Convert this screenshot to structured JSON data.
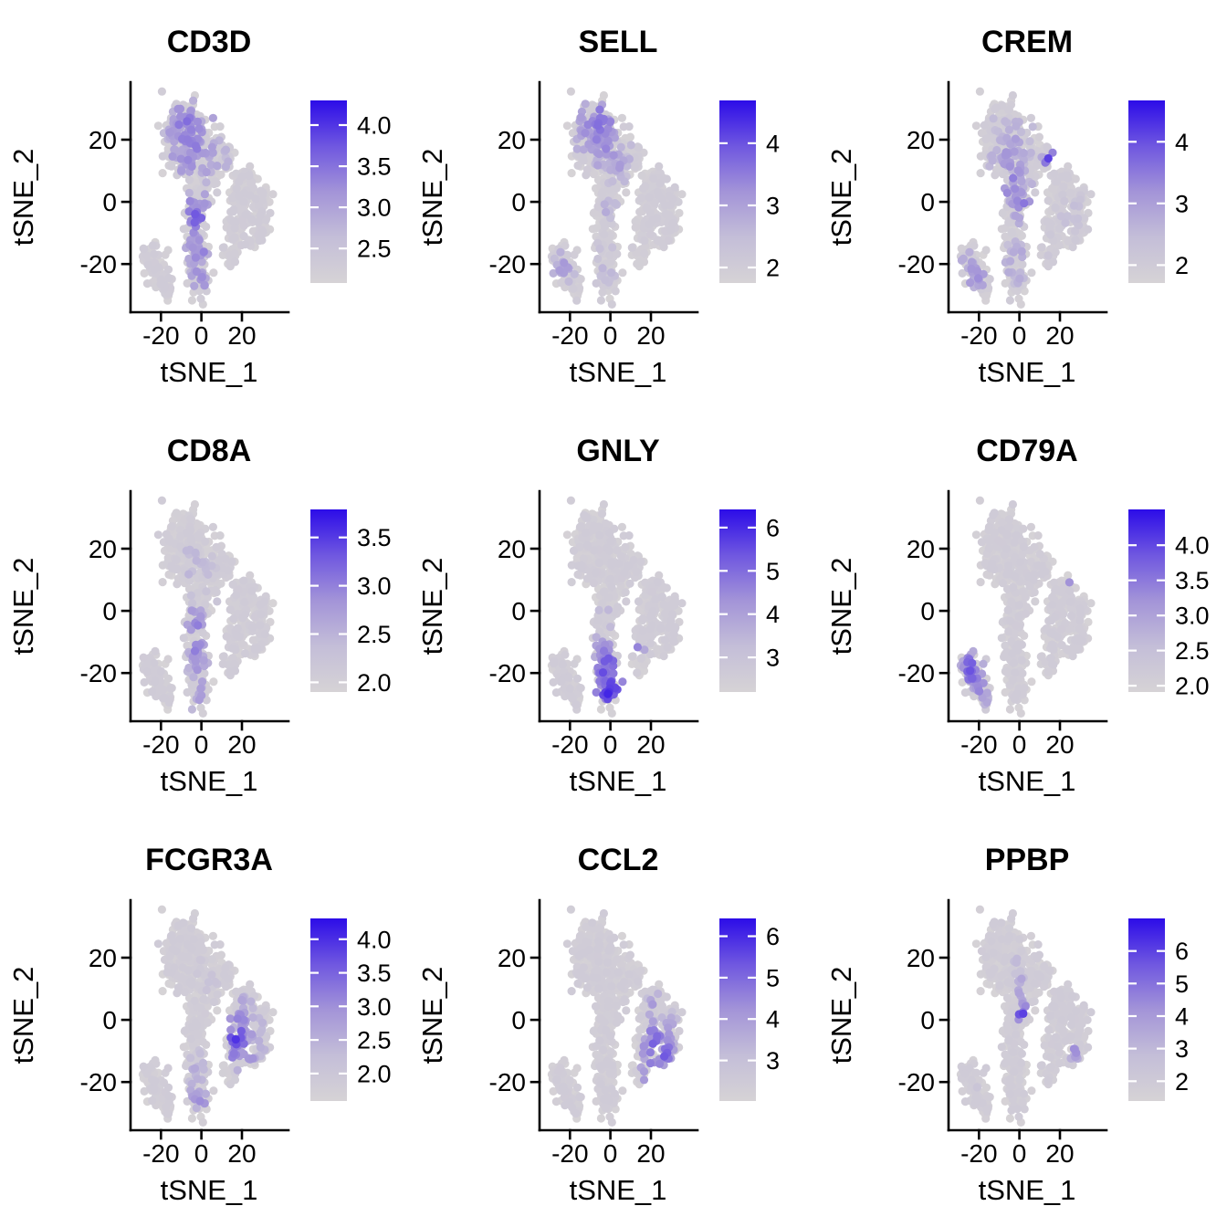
{
  "figure": {
    "background": "#ffffff",
    "kind": "tSNE feature plot grid"
  },
  "chart_data": {
    "type": "scatter",
    "layout": {
      "rows": 3,
      "cols": 3
    },
    "shared": {
      "xlabel": "tSNE_1",
      "ylabel": "tSNE_2",
      "xlim": [
        -35,
        43
      ],
      "ylim": [
        -35.5,
        38.5
      ],
      "xtick_values": [
        -20,
        0,
        20
      ],
      "xtick_labels": [
        "-20",
        "0",
        "20"
      ],
      "ytick_values": [
        20,
        0,
        -20
      ],
      "ytick_labels": [
        "20",
        "0",
        "-20"
      ],
      "grid": "off",
      "legend_position": "right",
      "colors": {
        "low": "#d6d3d6",
        "high": "#2c0ce8",
        "gradient_stops": [
          [
            0,
            "#d6d3d6"
          ],
          [
            0.25,
            "#c4bed8"
          ],
          [
            0.5,
            "#a394d8"
          ],
          [
            0.75,
            "#6f57e0"
          ],
          [
            1,
            "#2c0ce8"
          ]
        ]
      },
      "embedding_clusters": [
        [
          -8,
          26,
          4.5,
          3.2,
          70
        ],
        [
          -3,
          19,
          5.5,
          3.5,
          85
        ],
        [
          -9,
          13,
          3.5,
          2.8,
          45
        ],
        [
          2,
          10,
          4.0,
          3.5,
          60
        ],
        [
          9,
          14,
          2.8,
          2.2,
          30
        ],
        [
          13,
          14,
          1.8,
          1.5,
          10
        ],
        [
          -14,
          21,
          2.5,
          2.8,
          24
        ],
        [
          -16,
          15,
          2.0,
          2.0,
          12
        ],
        [
          -2,
          1,
          3.2,
          3.5,
          45
        ],
        [
          -4,
          -6,
          2.2,
          2.5,
          25
        ],
        [
          -2,
          -13,
          2.8,
          2.5,
          32
        ],
        [
          -1,
          -19,
          2.8,
          3.0,
          38
        ],
        [
          0,
          -26,
          2.8,
          2.5,
          34
        ],
        [
          -25,
          -17,
          2.8,
          2.2,
          32
        ],
        [
          -22,
          -22,
          2.8,
          2.5,
          34
        ],
        [
          -18,
          -27,
          2.5,
          2.2,
          26
        ],
        [
          16,
          -11,
          2.5,
          3.0,
          32
        ],
        [
          19,
          -4,
          3.0,
          3.5,
          50
        ],
        [
          21,
          3,
          3.0,
          2.5,
          38
        ],
        [
          23,
          8,
          2.2,
          1.8,
          18
        ],
        [
          14,
          -17,
          1.8,
          2.0,
          12
        ],
        [
          28,
          -2,
          2.5,
          3.5,
          40
        ],
        [
          30,
          -8,
          2.2,
          2.5,
          28
        ],
        [
          26,
          -13,
          2.0,
          2.0,
          16
        ],
        [
          31,
          2,
          2.0,
          2.5,
          20
        ]
      ]
    },
    "panels": [
      {
        "title": "CD3D",
        "scale_domain": [
          2.08,
          4.3
        ],
        "legend_ticks": [
          {
            "value": 4.0,
            "label": "4.0"
          },
          {
            "value": 3.5,
            "label": "3.5"
          },
          {
            "value": 3.0,
            "label": "3.0"
          },
          {
            "value": 2.5,
            "label": "2.5"
          }
        ],
        "hotspots": [
          {
            "x": -5,
            "y": 19,
            "r": 15,
            "v": 0.55,
            "f": 0.5
          },
          {
            "x": -8,
            "y": 26,
            "r": 8,
            "v": 0.6,
            "f": 0.45
          },
          {
            "x": -3,
            "y": -5,
            "r": 6,
            "v": 0.75,
            "f": 0.55
          },
          {
            "x": -1,
            "y": -16,
            "r": 6,
            "v": 0.6,
            "f": 0.5
          },
          {
            "x": 0,
            "y": -24,
            "r": 6,
            "v": 0.55,
            "f": 0.45
          }
        ]
      },
      {
        "title": "SELL",
        "scale_domain": [
          1.75,
          4.69
        ],
        "legend_ticks": [
          {
            "value": 4,
            "label": "4"
          },
          {
            "value": 3,
            "label": "3"
          },
          {
            "value": 2,
            "label": "2"
          }
        ],
        "hotspots": [
          {
            "x": -6,
            "y": 25,
            "r": 10,
            "v": 0.62,
            "f": 0.55
          },
          {
            "x": -2,
            "y": 17,
            "r": 9,
            "v": 0.5,
            "f": 0.45
          },
          {
            "x": 4,
            "y": 12,
            "r": 6,
            "v": 0.45,
            "f": 0.35
          },
          {
            "x": -22,
            "y": -21,
            "r": 7,
            "v": 0.45,
            "f": 0.35
          },
          {
            "x": -2,
            "y": -2,
            "r": 5,
            "v": 0.35,
            "f": 0.25
          },
          {
            "x": -1,
            "y": -20,
            "r": 7,
            "v": 0.3,
            "f": 0.2
          }
        ]
      },
      {
        "title": "CREM",
        "scale_domain": [
          1.71,
          4.67
        ],
        "legend_ticks": [
          {
            "value": 4,
            "label": "4"
          },
          {
            "value": 3,
            "label": "3"
          },
          {
            "value": 2,
            "label": "2"
          }
        ],
        "hotspots": [
          {
            "x": -4,
            "y": 6,
            "r": 9,
            "v": 0.55,
            "f": 0.5
          },
          {
            "x": -5,
            "y": 16,
            "r": 11,
            "v": 0.45,
            "f": 0.4
          },
          {
            "x": 2,
            "y": -1,
            "r": 6,
            "v": 0.6,
            "f": 0.5
          },
          {
            "x": 15,
            "y": 14,
            "r": 2.5,
            "v": 0.85,
            "f": 0.95
          },
          {
            "x": -22,
            "y": -23,
            "r": 7,
            "v": 0.5,
            "f": 0.35
          },
          {
            "x": -1,
            "y": -20,
            "r": 9,
            "v": 0.4,
            "f": 0.3
          },
          {
            "x": 26,
            "y": -4,
            "r": 8,
            "v": 0.25,
            "f": 0.2
          }
        ]
      },
      {
        "title": "CD8A",
        "scale_domain": [
          1.9,
          3.79
        ],
        "legend_ticks": [
          {
            "value": 3.5,
            "label": "3.5"
          },
          {
            "value": 3.0,
            "label": "3.0"
          },
          {
            "value": 2.5,
            "label": "2.5"
          },
          {
            "value": 2.0,
            "label": "2.0"
          }
        ],
        "hotspots": [
          {
            "x": -3,
            "y": -4,
            "r": 5,
            "v": 0.6,
            "f": 0.5
          },
          {
            "x": -2,
            "y": -13,
            "r": 5,
            "v": 0.55,
            "f": 0.5
          },
          {
            "x": -1,
            "y": -20,
            "r": 5,
            "v": 0.5,
            "f": 0.45
          },
          {
            "x": 0,
            "y": -26,
            "r": 5,
            "v": 0.5,
            "f": 0.4
          },
          {
            "x": -5,
            "y": 14,
            "r": 12,
            "v": 0.3,
            "f": 0.15
          }
        ]
      },
      {
        "title": "GNLY",
        "scale_domain": [
          2.2,
          6.42
        ],
        "legend_ticks": [
          {
            "value": 6,
            "label": "6"
          },
          {
            "value": 5,
            "label": "5"
          },
          {
            "value": 4,
            "label": "4"
          },
          {
            "value": 3,
            "label": "3"
          }
        ],
        "hotspots": [
          {
            "x": -1,
            "y": -19,
            "r": 6,
            "v": 0.8,
            "f": 0.8
          },
          {
            "x": 0,
            "y": -26,
            "r": 6,
            "v": 0.85,
            "f": 0.85
          },
          {
            "x": -3,
            "y": -12,
            "r": 4,
            "v": 0.6,
            "f": 0.6
          },
          {
            "x": 14,
            "y": -13,
            "r": 2,
            "v": 0.7,
            "f": 0.9
          },
          {
            "x": -4,
            "y": -3,
            "r": 3,
            "v": 0.5,
            "f": 0.4
          }
        ]
      },
      {
        "title": "CD79A",
        "scale_domain": [
          1.91,
          4.51
        ],
        "legend_ticks": [
          {
            "value": 4.0,
            "label": "4.0"
          },
          {
            "value": 3.5,
            "label": "3.5"
          },
          {
            "value": 3.0,
            "label": "3.0"
          },
          {
            "value": 2.5,
            "label": "2.5"
          },
          {
            "value": 2.0,
            "label": "2.0"
          }
        ],
        "hotspots": [
          {
            "x": -24,
            "y": -19,
            "r": 6,
            "v": 0.7,
            "f": 0.8
          },
          {
            "x": -20,
            "y": -24,
            "r": 5,
            "v": 0.55,
            "f": 0.6
          },
          {
            "x": -17,
            "y": -28,
            "r": 4,
            "v": 0.4,
            "f": 0.4
          },
          {
            "x": 25,
            "y": 10,
            "r": 1.5,
            "v": 0.6,
            "f": 1.0
          },
          {
            "x": -21,
            "y": 19,
            "r": 1.5,
            "v": 0.5,
            "f": 1.0
          }
        ]
      },
      {
        "title": "FCGR3A",
        "scale_domain": [
          1.59,
          4.31
        ],
        "legend_ticks": [
          {
            "value": 4.0,
            "label": "4.0"
          },
          {
            "value": 3.5,
            "label": "3.5"
          },
          {
            "value": 3.0,
            "label": "3.0"
          },
          {
            "value": 2.5,
            "label": "2.5"
          },
          {
            "value": 2.0,
            "label": "2.0"
          }
        ],
        "hotspots": [
          {
            "x": 17,
            "y": -6,
            "r": 6,
            "v": 0.8,
            "f": 0.7
          },
          {
            "x": 20,
            "y": 0,
            "r": 7,
            "v": 0.55,
            "f": 0.5
          },
          {
            "x": 22,
            "y": -12,
            "r": 6,
            "v": 0.55,
            "f": 0.5
          },
          {
            "x": 28,
            "y": -5,
            "r": 6,
            "v": 0.4,
            "f": 0.35
          },
          {
            "x": 0,
            "y": -25,
            "r": 6,
            "v": 0.5,
            "f": 0.5
          },
          {
            "x": -1,
            "y": -17,
            "r": 5,
            "v": 0.4,
            "f": 0.35
          },
          {
            "x": 5,
            "y": 13,
            "r": 8,
            "v": 0.2,
            "f": 0.1
          }
        ]
      },
      {
        "title": "CCL2",
        "scale_domain": [
          2.02,
          6.43
        ],
        "legend_ticks": [
          {
            "value": 6,
            "label": "6"
          },
          {
            "value": 5,
            "label": "5"
          },
          {
            "value": 4,
            "label": "4"
          },
          {
            "value": 3,
            "label": "3"
          }
        ],
        "hotspots": [
          {
            "x": 24,
            "y": -10,
            "r": 7,
            "v": 0.75,
            "f": 0.6
          },
          {
            "x": 27,
            "y": -15,
            "r": 5,
            "v": 0.7,
            "f": 0.55
          },
          {
            "x": 21,
            "y": -4,
            "r": 5,
            "v": 0.55,
            "f": 0.4
          },
          {
            "x": 30,
            "y": -3,
            "r": 5,
            "v": 0.5,
            "f": 0.4
          },
          {
            "x": 22,
            "y": 4,
            "r": 5,
            "v": 0.45,
            "f": 0.3
          },
          {
            "x": 16,
            "y": -18,
            "r": 3,
            "v": 0.5,
            "f": 0.4
          }
        ]
      },
      {
        "title": "PPBP",
        "scale_domain": [
          1.39,
          7.0
        ],
        "legend_ticks": [
          {
            "value": 6,
            "label": "6"
          },
          {
            "value": 5,
            "label": "5"
          },
          {
            "value": 4,
            "label": "4"
          },
          {
            "value": 3,
            "label": "3"
          },
          {
            "value": 2,
            "label": "2"
          }
        ],
        "hotspots": [
          {
            "x": 1,
            "y": 2,
            "r": 2.2,
            "v": 0.85,
            "f": 0.9
          },
          {
            "x": 3,
            "y": 5,
            "r": 2,
            "v": 0.6,
            "f": 0.7
          },
          {
            "x": -1,
            "y": 8,
            "r": 2,
            "v": 0.5,
            "f": 0.6
          },
          {
            "x": 2,
            "y": -5,
            "r": 2,
            "v": 0.55,
            "f": 0.7
          },
          {
            "x": 0,
            "y": 13,
            "r": 2,
            "v": 0.45,
            "f": 0.5
          },
          {
            "x": 27,
            "y": -10,
            "r": 2.5,
            "v": 0.55,
            "f": 0.85
          },
          {
            "x": -1,
            "y": 20,
            "r": 2,
            "v": 0.35,
            "f": 0.4
          },
          {
            "x": -20,
            "y": -22,
            "r": 3,
            "v": 0.2,
            "f": 0.2
          }
        ]
      }
    ]
  }
}
